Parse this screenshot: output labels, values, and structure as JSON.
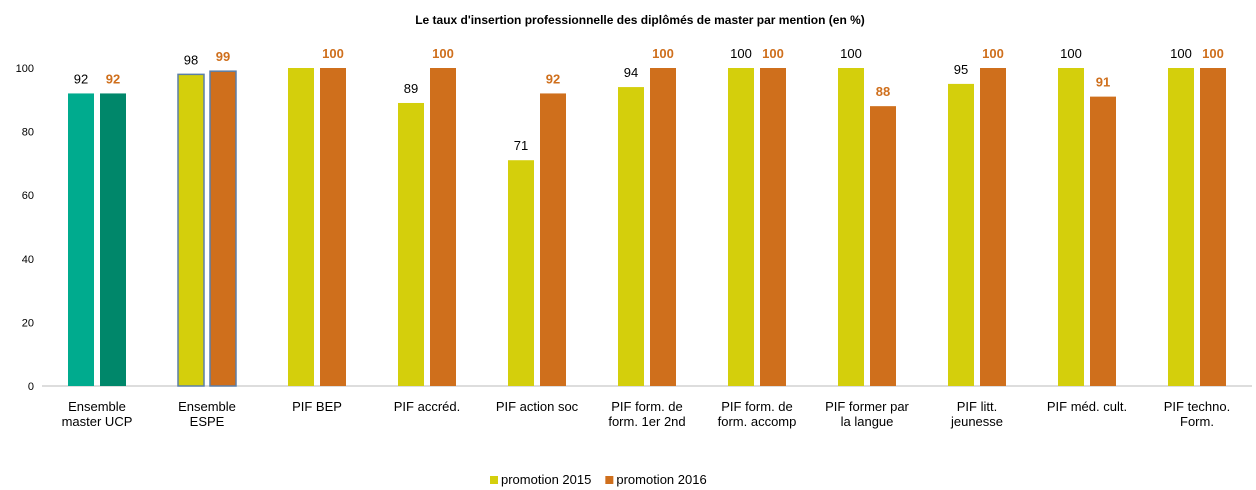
{
  "chart_data": {
    "type": "bar",
    "title": "Le taux d'insertion professionnelle des diplômés de master par mention (en %)",
    "categories": [
      "Ensemble master UCP",
      "Ensemble ESPE",
      "PIF BEP",
      "PIF accréd.",
      "PIF action soc",
      "PIF form. de form. 1er 2nd",
      "PIF form. de form. accomp",
      "PIF former par la langue",
      "PIF litt. jeunesse",
      "PIF méd. cult.",
      "PIF techno. Form."
    ],
    "series": [
      {
        "name": "promotion 2015",
        "color": "#d4cf0c",
        "label_color": "#000000",
        "colors": [
          "#00ab8e",
          "#d4cf0c",
          "#d4cf0c",
          "#d4cf0c",
          "#d4cf0c",
          "#d4cf0c",
          "#d4cf0c",
          "#d4cf0c",
          "#d4cf0c",
          "#d4cf0c",
          "#d4cf0c"
        ],
        "edgecolors": [
          null,
          "#5b7fa8",
          null,
          null,
          null,
          null,
          null,
          null,
          null,
          null,
          null
        ],
        "values": [
          92,
          98,
          100,
          89,
          71,
          94,
          100,
          100,
          95,
          100,
          100
        ],
        "value_labels": [
          "92",
          "98",
          null,
          "89",
          "71",
          "94",
          "100",
          "100",
          "95",
          "100",
          "100"
        ]
      },
      {
        "name": "promotion 2016",
        "color": "#cf6f1c",
        "label_color": "#cf6f1c",
        "colors": [
          "#00876a",
          "#cf6f1c",
          "#cf6f1c",
          "#cf6f1c",
          "#cf6f1c",
          "#cf6f1c",
          "#cf6f1c",
          "#cf6f1c",
          "#cf6f1c",
          "#cf6f1c",
          "#cf6f1c"
        ],
        "edgecolors": [
          null,
          "#5b7fa8",
          null,
          null,
          null,
          null,
          null,
          null,
          null,
          null,
          null
        ],
        "values": [
          92,
          99,
          100,
          100,
          92,
          100,
          100,
          88,
          100,
          91,
          100
        ],
        "value_labels": [
          "92",
          "99",
          "100",
          "100",
          "92",
          "100",
          "100",
          "88",
          "100",
          "91",
          "100"
        ]
      }
    ],
    "ylim": [
      0,
      100
    ],
    "yticks": [
      0,
      20,
      40,
      60,
      80,
      100
    ],
    "grid": false,
    "legend": "bottom"
  }
}
